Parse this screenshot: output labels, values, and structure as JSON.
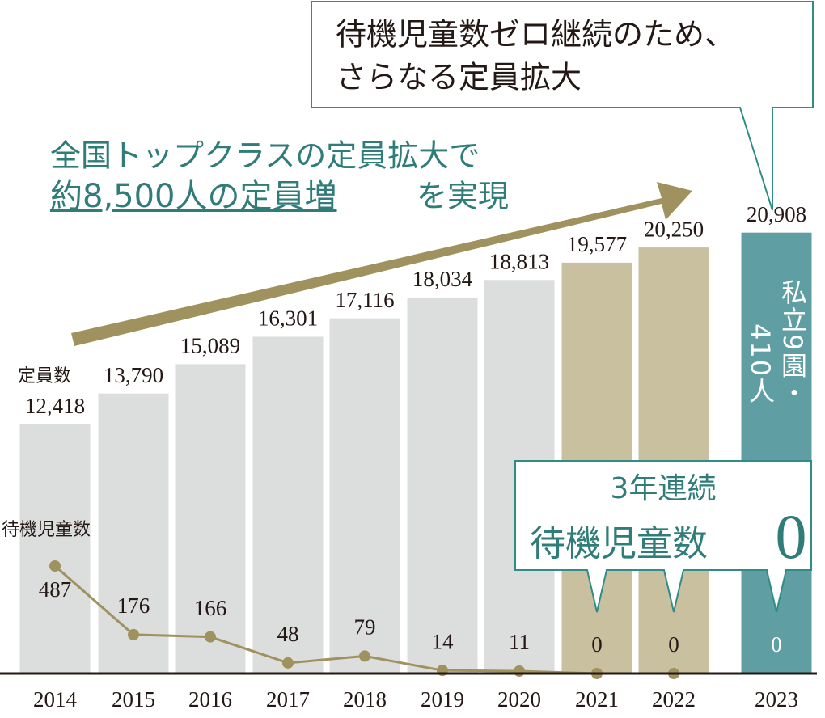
{
  "chart_data": {
    "type": "bar-line",
    "categories": [
      "2014",
      "2015",
      "2016",
      "2017",
      "2018",
      "2019",
      "2020",
      "2021",
      "2022",
      "2023"
    ],
    "series": [
      {
        "name": "定員数",
        "type": "bar",
        "values": [
          12418,
          13790,
          15089,
          16301,
          17116,
          18034,
          18813,
          19577,
          20250,
          20908
        ],
        "value_labels": [
          "12,418",
          "13,790",
          "15,089",
          "16,301",
          "17,116",
          "18,034",
          "18,813",
          "19,577",
          "20,250",
          "20,908"
        ],
        "colors": [
          "#dcdddd",
          "#dcdddd",
          "#dcdddd",
          "#dcdddd",
          "#dcdddd",
          "#dcdddd",
          "#dcdddd",
          "#c9c0a0",
          "#c9c0a0",
          "#5f9ea2"
        ]
      },
      {
        "name": "待機児童数",
        "type": "line",
        "axis": "y2",
        "color": "#a0925f",
        "values": [
          487,
          176,
          166,
          48,
          79,
          14,
          11,
          0,
          0,
          0
        ]
      }
    ],
    "ylim": [
      1400,
      31200
    ],
    "y2lim": [
      0,
      3050
    ],
    "annotations": {
      "top_callout": [
        "待機児童数ゼロ継続のため、",
        "さらなる定員拡大"
      ],
      "arrow_text": {
        "line1": "全国トップクラスの定員拡大で",
        "emphasis": "約8,500人の定員増",
        "rest": "を実現"
      },
      "bar_note": [
        "私立9園・",
        "410人"
      ],
      "bottom_callout": {
        "line1": "3年連続",
        "line2": "待機児童数",
        "big": "0"
      }
    }
  }
}
